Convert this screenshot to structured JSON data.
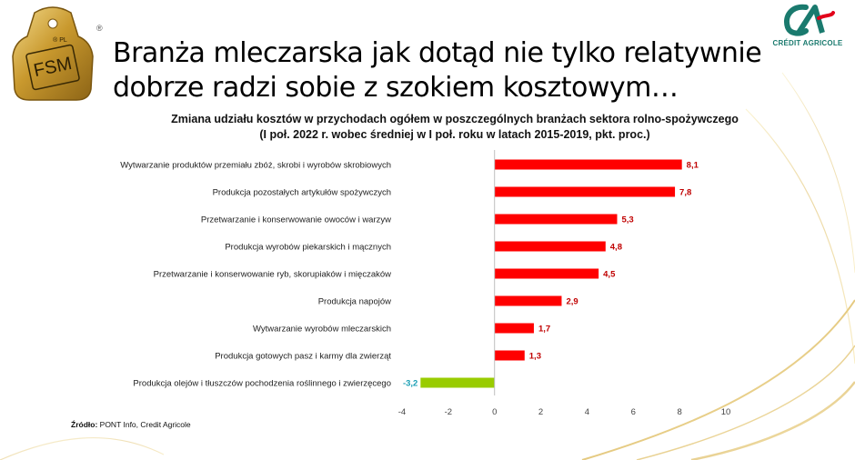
{
  "header": {
    "title": "Branża mleczarska jak dotąd nie tylko relatywnie dobrze radzi sobie z szokiem kosztowym…",
    "logo_tag_text": "FSM",
    "logo_tag_small": "® PL",
    "registered_mark": "®",
    "brand_name": "CRÉDIT AGRICOLE",
    "brand_color": "#1a7a6e"
  },
  "chart_data": {
    "type": "bar",
    "orientation": "horizontal",
    "title": "Zmiana udziału kosztów w przychodach ogółem w poszczególnych branżach sektora rolno-spożywczego",
    "subtitle": "(I poł. 2022 r. wobec średniej w I poł. roku w latach 2015-2019, pkt. proc.)",
    "categories": [
      "Wytwarzanie produktów przemiału zbóż, skrobi i wyrobów skrobiowych",
      "Produkcja pozostałych artykułów spożywczych",
      "Przetwarzanie i konserwowanie owoców i warzyw",
      "Produkcja wyrobów piekarskich i mącznych",
      "Przetwarzanie i konserwowanie ryb, skorupiaków i mięczaków",
      "Produkcja napojów",
      "Wytwarzanie wyrobów mleczarskich",
      "Produkcja gotowych pasz i karmy dla zwierząt",
      "Produkcja olejów i tłuszczów pochodzenia roślinnego i zwierzęcego"
    ],
    "values": [
      8.1,
      7.8,
      5.3,
      4.8,
      4.5,
      2.9,
      1.7,
      1.3,
      -3.2
    ],
    "value_labels": [
      "8,1",
      "7,8",
      "5,3",
      "4,8",
      "4,5",
      "2,9",
      "1,7",
      "1,3",
      "-3,2"
    ],
    "xlim": [
      -4,
      10
    ],
    "x_ticks": [
      -4,
      -2,
      0,
      2,
      4,
      6,
      8,
      10
    ],
    "grid": false,
    "colors": {
      "positive": "#ff0000",
      "negative": "#99cc00",
      "positive_label": "#c00000",
      "negative_label": "#1a9fb5"
    }
  },
  "source": {
    "label": "Źródło:",
    "text": "PONT Info, Credit Agricole"
  }
}
